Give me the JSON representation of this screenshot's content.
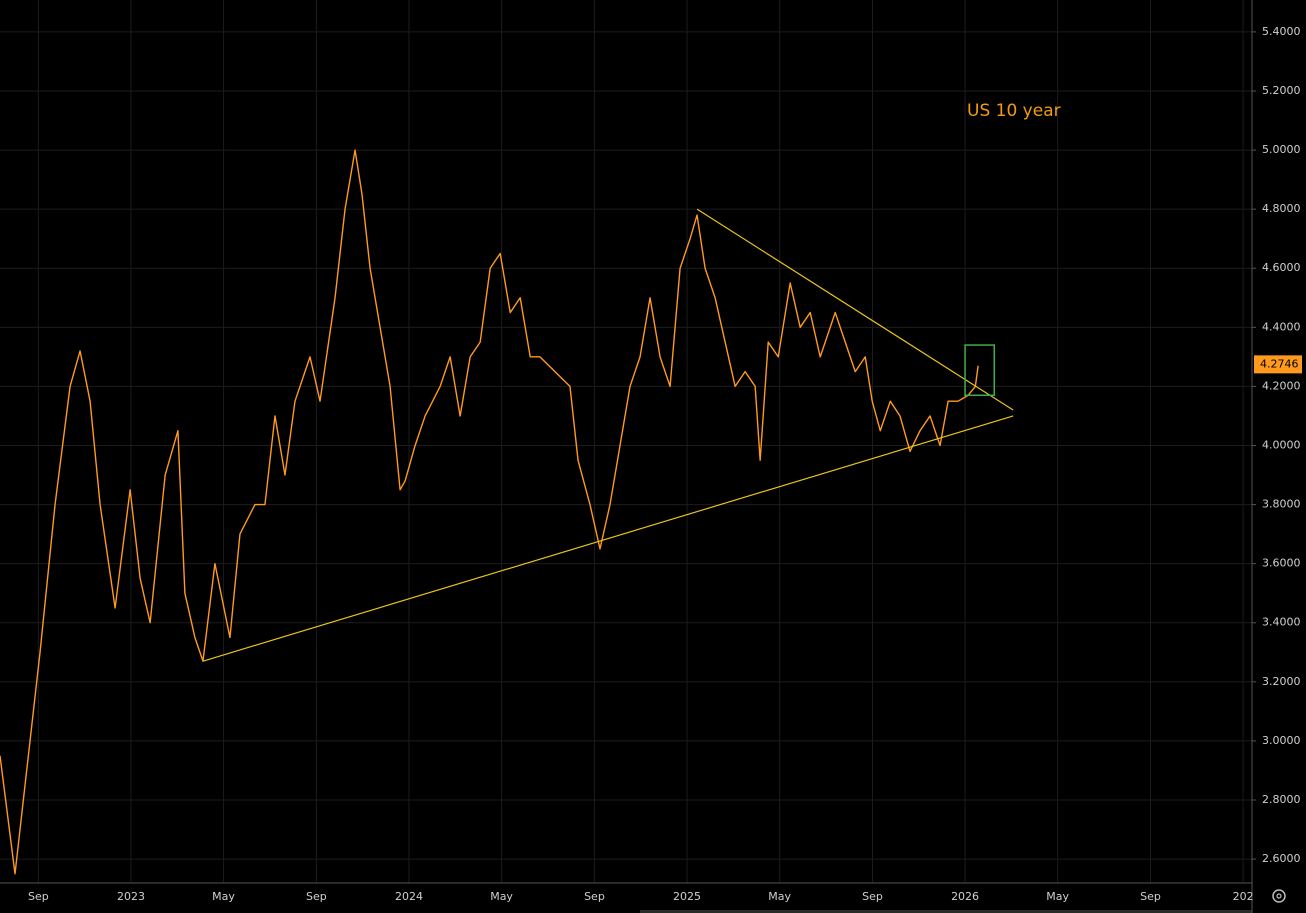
{
  "chart_data": {
    "type": "line",
    "title": "US 10 year",
    "xlim": [
      2022.529,
      2027.032
    ],
    "ylim": [
      2.519,
      5.508
    ],
    "xticks": [
      {
        "value": 2022.667,
        "label": "Sep"
      },
      2023,
      {
        "value": 2023.333,
        "label": "May"
      },
      {
        "value": 2023.667,
        "label": "Sep"
      },
      2024,
      {
        "value": 2024.333,
        "label": "May"
      },
      {
        "value": 2024.667,
        "label": "Sep"
      },
      2025,
      {
        "value": 2025.333,
        "label": "May"
      },
      {
        "value": 2025.667,
        "label": "Sep"
      },
      2026,
      {
        "value": 2026.333,
        "label": "May"
      },
      {
        "value": 2026.667,
        "label": "Sep"
      },
      {
        "value": 2027,
        "label": "202"
      }
    ],
    "yticks": [
      {
        "value": 2.6,
        "label": "2.6000"
      },
      {
        "value": 2.8,
        "label": "2.8000"
      },
      {
        "value": 3.0,
        "label": "3.0000"
      },
      {
        "value": 3.2,
        "label": "3.2000"
      },
      {
        "value": 3.4,
        "label": "3.4000"
      },
      {
        "value": 3.6,
        "label": "3.6000"
      },
      {
        "value": 3.8,
        "label": "3.8000"
      },
      {
        "value": 4.0,
        "label": "4.0000"
      },
      {
        "value": 4.2,
        "label": "4.2000"
      },
      {
        "value": 4.4,
        "label": "4.4000"
      },
      {
        "value": 4.6,
        "label": "4.6000"
      },
      {
        "value": 4.8,
        "label": "4.8000"
      },
      {
        "value": 5.0,
        "label": "5.0000"
      },
      {
        "value": 5.2,
        "label": "5.2000"
      },
      {
        "value": 5.4,
        "label": "5.4000"
      }
    ],
    "grid": true,
    "last_value": 4.2746,
    "series": [
      {
        "color": "#ff9a1f",
        "x": [
          2022.529,
          2022.583,
          2022.673,
          2022.727,
          2022.781,
          2022.817,
          2022.853,
          2022.889,
          2022.943,
          2022.997,
          2023.033,
          2023.069,
          2023.123,
          2023.169,
          2023.194,
          2023.23,
          2023.259,
          2023.302,
          2023.356,
          2023.392,
          2023.446,
          2023.482,
          2023.518,
          2023.554,
          2023.59,
          2023.644,
          2023.68,
          2023.734,
          2023.77,
          2023.806,
          2023.831,
          2023.86,
          2023.896,
          2023.932,
          2023.968,
          2023.986,
          2024.022,
          2024.058,
          2024.112,
          2024.148,
          2024.184,
          2024.22,
          2024.256,
          2024.292,
          2024.328,
          2024.364,
          2024.4,
          2024.436,
          2024.471,
          2024.525,
          2024.579,
          2024.608,
          2024.651,
          2024.687,
          2024.723,
          2024.759,
          2024.795,
          2024.831,
          2024.867,
          2024.903,
          2024.939,
          2024.975,
          2025.011,
          2025.036,
          2025.065,
          2025.101,
          2025.137,
          2025.173,
          2025.209,
          2025.245,
          2025.263,
          2025.292,
          2025.328,
          2025.371,
          2025.407,
          2025.443,
          2025.479,
          2025.533,
          2025.569,
          2025.605,
          2025.641,
          2025.666,
          2025.695,
          2025.731,
          2025.766,
          2025.802,
          2025.838,
          2025.874,
          2025.91,
          2025.939,
          2025.975,
          2026.011,
          2026.037,
          2026.047
        ],
        "values": [
          2.95,
          2.55,
          3.3,
          3.8,
          4.2,
          4.32,
          4.15,
          3.8,
          3.45,
          3.85,
          3.55,
          3.4,
          3.9,
          4.05,
          3.5,
          3.35,
          3.27,
          3.6,
          3.35,
          3.7,
          3.8,
          3.8,
          4.1,
          3.9,
          4.15,
          4.3,
          4.15,
          4.5,
          4.8,
          5.0,
          4.85,
          4.6,
          4.4,
          4.2,
          3.85,
          3.88,
          4.0,
          4.1,
          4.2,
          4.3,
          4.1,
          4.3,
          4.35,
          4.6,
          4.65,
          4.45,
          4.5,
          4.3,
          4.3,
          4.25,
          4.2,
          3.95,
          3.8,
          3.65,
          3.8,
          4.0,
          4.2,
          4.3,
          4.5,
          4.3,
          4.2,
          4.6,
          4.7,
          4.78,
          4.6,
          4.5,
          4.35,
          4.2,
          4.25,
          4.2,
          3.95,
          4.35,
          4.3,
          4.55,
          4.4,
          4.45,
          4.3,
          4.45,
          4.35,
          4.25,
          4.3,
          4.15,
          4.05,
          4.15,
          4.1,
          3.98,
          4.05,
          4.1,
          4.0,
          4.15,
          4.15,
          4.17,
          4.2,
          4.27
        ]
      }
    ],
    "trendlines": [
      {
        "color": "#e8c21c",
        "x": [
          2023.259,
          2026.173
        ],
        "values": [
          3.27,
          4.1
        ]
      },
      {
        "color": "#e8c21c",
        "x": [
          2025.036,
          2026.173
        ],
        "values": [
          4.8,
          4.12
        ]
      }
    ],
    "box": {
      "color": "#3fae49",
      "x": [
        2026.0,
        2026.105
      ],
      "y": [
        4.17,
        4.34
      ]
    }
  }
}
